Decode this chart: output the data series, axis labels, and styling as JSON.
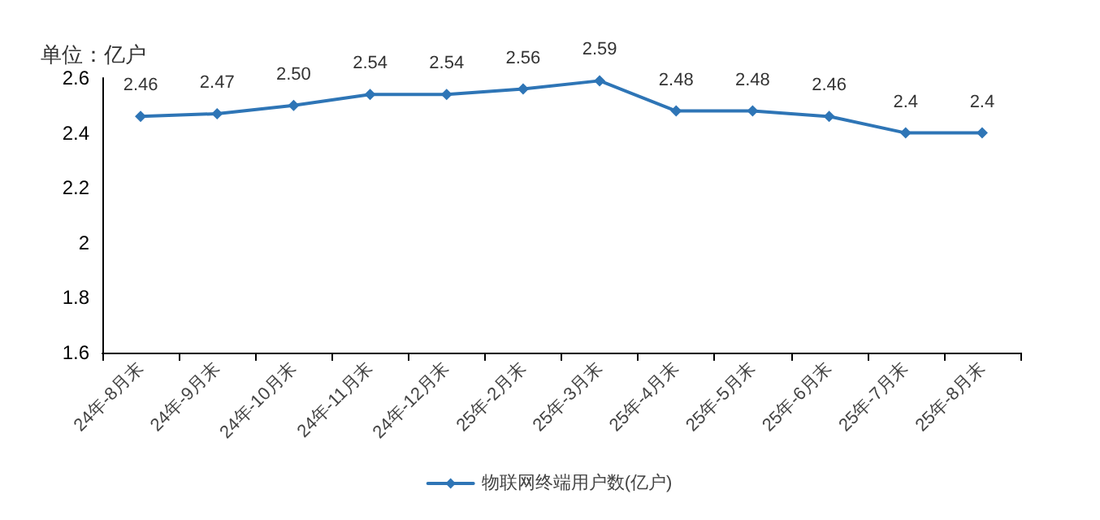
{
  "chart_data": {
    "type": "line",
    "ylabel": "单位：亿户",
    "categories": [
      "24年-8月末",
      "24年-9月末",
      "24年-10月末",
      "24年-11月末",
      "24年-12月末",
      "25年-2月末",
      "25年-3月末",
      "25年-4月末",
      "25年-5月末",
      "25年-6月末",
      "25年-7月末",
      "25年-8月末"
    ],
    "series": [
      {
        "name": "物联网终端用户数(亿户)",
        "color": "#2e75b6",
        "values": [
          2.46,
          2.47,
          2.5,
          2.54,
          2.54,
          2.56,
          2.59,
          2.48,
          2.48,
          2.46,
          2.4,
          2.4
        ],
        "value_labels": [
          "2.46",
          "2.47",
          "2.50",
          "2.54",
          "2.54",
          "2.56",
          "2.59",
          "2.48",
          "2.48",
          "2.46",
          "2.4",
          "2.4"
        ]
      }
    ],
    "ylim": [
      1.6,
      2.6
    ],
    "yticks": [
      1.6,
      1.8,
      2,
      2.2,
      2.4,
      2.6
    ],
    "grid": false,
    "legend": "bottom",
    "marker": "diamond",
    "line_style": "solid"
  }
}
